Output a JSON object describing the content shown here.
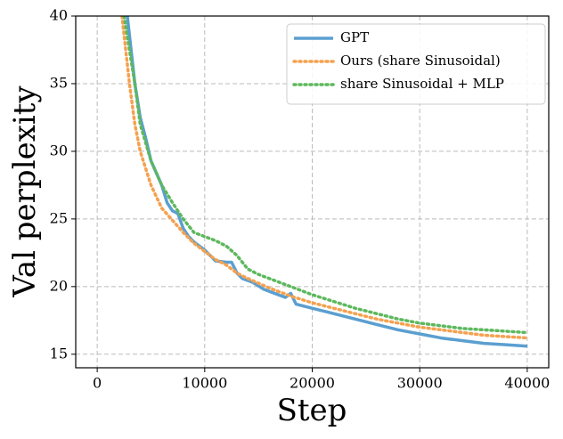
{
  "chart_data": {
    "type": "line",
    "x_label": "Step",
    "y_label": "Val perplexity",
    "xlim": [
      -2000,
      42000
    ],
    "ylim": [
      14,
      40
    ],
    "xticks": [
      0,
      10000,
      20000,
      30000,
      40000
    ],
    "yticks": [
      15,
      20,
      25,
      30,
      35,
      40
    ],
    "grid": true,
    "legend": "upper right",
    "series": [
      {
        "name": "GPT",
        "color": "#5b9fd0",
        "style": "solid",
        "x": [
          2800,
          3500,
          4000,
          4500,
          5000,
          6000,
          6500,
          7000,
          7500,
          8000,
          8500,
          9000,
          10000,
          11000,
          12000,
          12500,
          13000,
          13500,
          14500,
          15500,
          16500,
          17500,
          18000,
          18500,
          20000,
          22000,
          24000,
          26000,
          28000,
          30000,
          32000,
          34000,
          36000,
          38000,
          40000
        ],
        "values": [
          40,
          35,
          32.5,
          31,
          29.3,
          27.5,
          26.2,
          25.6,
          25.4,
          24.3,
          23.7,
          23.3,
          22.7,
          21.9,
          21.8,
          21.8,
          21.0,
          20.6,
          20.3,
          19.8,
          19.5,
          19.2,
          19.5,
          18.7,
          18.4,
          18.0,
          17.6,
          17.2,
          16.8,
          16.5,
          16.2,
          16.0,
          15.8,
          15.7,
          15.6
        ]
      },
      {
        "name": "Ours (share Sinusoidal)",
        "color": "#f5a14f",
        "style": "dotted",
        "x": [
          2300,
          3000,
          3500,
          4000,
          5000,
          6000,
          7000,
          8000,
          9000,
          10000,
          11000,
          12000,
          13000,
          14000,
          16000,
          18000,
          20000,
          22000,
          24000,
          26000,
          28000,
          30000,
          32000,
          34000,
          36000,
          38000,
          40000
        ],
        "values": [
          40,
          35,
          32,
          30,
          27.5,
          25.8,
          24.9,
          24.0,
          23.2,
          22.6,
          22.0,
          21.6,
          21.0,
          20.6,
          19.9,
          19.3,
          18.8,
          18.4,
          18.0,
          17.6,
          17.3,
          17.0,
          16.8,
          16.6,
          16.4,
          16.3,
          16.2
        ]
      },
      {
        "name": "share Sinusoidal + MLP",
        "color": "#5db85d",
        "style": "dotted",
        "x": [
          2500,
          3500,
          4000,
          5000,
          6000,
          7000,
          8000,
          9000,
          10000,
          11000,
          12000,
          13000,
          14000,
          15000,
          16000,
          18000,
          20000,
          22000,
          24000,
          26000,
          28000,
          30000,
          32000,
          34000,
          36000,
          38000,
          40000
        ],
        "values": [
          40,
          35,
          32,
          29.3,
          27.5,
          26.2,
          25.0,
          24.0,
          23.7,
          23.4,
          23.0,
          22.3,
          21.3,
          20.9,
          20.6,
          20.0,
          19.4,
          18.9,
          18.4,
          18.0,
          17.6,
          17.3,
          17.1,
          16.9,
          16.8,
          16.7,
          16.6
        ]
      }
    ]
  }
}
